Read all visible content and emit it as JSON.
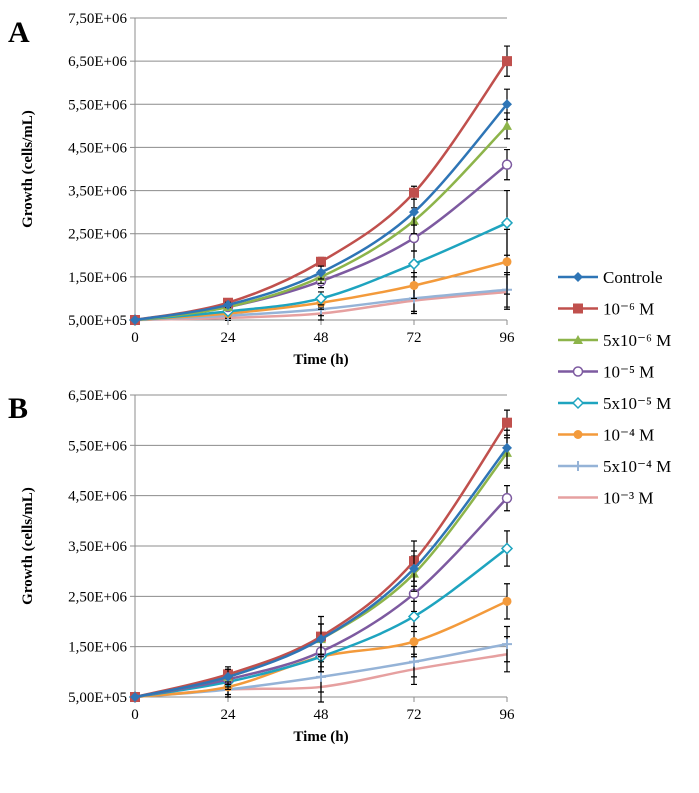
{
  "legend": [
    {
      "label": "Controle",
      "color": "#2e75b6",
      "marker": "diamond"
    },
    {
      "label": "10⁻⁶ M",
      "color": "#c0504d",
      "marker": "square"
    },
    {
      "label": "5x10⁻⁶ M",
      "color": "#8db44a",
      "marker": "triangle"
    },
    {
      "label": "10⁻⁵ M",
      "color": "#7d5aa0",
      "marker": "circle-open"
    },
    {
      "label": "5x10⁻⁵ M",
      "color": "#1ea4bf",
      "marker": "diamond-open"
    },
    {
      "label": "10⁻⁴ M",
      "color": "#f39a3b",
      "marker": "circle"
    },
    {
      "label": "5x10⁻⁴ M",
      "color": "#95b3d7",
      "marker": "plus"
    },
    {
      "label": "10⁻³ M",
      "color": "#e6a0a0",
      "marker": "none"
    }
  ],
  "chart_data": [
    {
      "type": "line",
      "panel": "A",
      "xlabel": "Time (h)",
      "ylabel": "Growth (cells/mL)",
      "x": [
        0,
        24,
        48,
        72,
        96
      ],
      "xlim": [
        0,
        96
      ],
      "ylim": [
        500000,
        7500000
      ],
      "yticks": [
        "5,00E+05",
        "1,50E+06",
        "2,50E+06",
        "3,50E+06",
        "4,50E+06",
        "5,50E+06",
        "6,50E+06",
        "7,50E+06"
      ],
      "xticks": [
        "0",
        "24",
        "48",
        "72",
        "96"
      ],
      "series": [
        {
          "name": "Controle",
          "values": [
            500000,
            850000,
            1600000,
            3000000,
            5500000
          ],
          "err": [
            0,
            60000,
            150000,
            300000,
            350000
          ]
        },
        {
          "name": "10⁻⁶ M",
          "values": [
            500000,
            900000,
            1850000,
            3450000,
            6500000
          ],
          "err": [
            0,
            60000,
            100000,
            150000,
            350000
          ]
        },
        {
          "name": "5x10⁻⁶ M",
          "values": [
            500000,
            800000,
            1500000,
            2800000,
            5000000
          ],
          "err": [
            0,
            60000,
            150000,
            300000,
            300000
          ]
        },
        {
          "name": "10⁻⁵ M",
          "values": [
            500000,
            800000,
            1400000,
            2400000,
            4100000
          ],
          "err": [
            0,
            60000,
            150000,
            300000,
            350000
          ]
        },
        {
          "name": "5x10⁻⁵ M",
          "values": [
            500000,
            700000,
            1000000,
            1800000,
            2750000
          ],
          "err": [
            0,
            60000,
            150000,
            300000,
            750000
          ]
        },
        {
          "name": "10⁻⁴ M",
          "values": [
            500000,
            650000,
            900000,
            1300000,
            1850000
          ],
          "err": [
            0,
            60000,
            150000,
            300000,
            750000
          ]
        },
        {
          "name": "5x10⁻⁴ M",
          "values": [
            500000,
            600000,
            750000,
            1000000,
            1200000
          ],
          "err": [
            0,
            60000,
            150000,
            300000,
            400000
          ]
        },
        {
          "name": "10⁻³ M",
          "values": [
            500000,
            550000,
            650000,
            950000,
            1150000
          ],
          "err": [
            0,
            60000,
            150000,
            300000,
            400000
          ]
        }
      ]
    },
    {
      "type": "line",
      "panel": "B",
      "xlabel": "Time (h)",
      "ylabel": "Growth (cells/mL)",
      "x": [
        0,
        24,
        48,
        72,
        96
      ],
      "xlim": [
        0,
        96
      ],
      "ylim": [
        500000,
        6500000
      ],
      "yticks": [
        "5,00E+05",
        "1,50E+06",
        "2,50E+06",
        "3,50E+06",
        "4,50E+06",
        "5,50E+06",
        "6,50E+06"
      ],
      "xticks": [
        "0",
        "24",
        "48",
        "72",
        "96"
      ],
      "series": [
        {
          "name": "Controle",
          "values": [
            500000,
            900000,
            1650000,
            3050000,
            5450000
          ],
          "err": [
            0,
            150000,
            300000,
            350000,
            350000
          ]
        },
        {
          "name": "10⁻⁶ M",
          "values": [
            500000,
            950000,
            1700000,
            3200000,
            5950000
          ],
          "err": [
            0,
            150000,
            400000,
            400000,
            250000
          ]
        },
        {
          "name": "5x10⁻⁶ M",
          "values": [
            500000,
            900000,
            1650000,
            2950000,
            5350000
          ],
          "err": [
            0,
            150000,
            300000,
            350000,
            300000
          ]
        },
        {
          "name": "10⁻⁵ M",
          "values": [
            500000,
            850000,
            1400000,
            2550000,
            4450000
          ],
          "err": [
            0,
            150000,
            300000,
            350000,
            250000
          ]
        },
        {
          "name": "5x10⁻⁵ M",
          "values": [
            500000,
            800000,
            1300000,
            2100000,
            3450000
          ],
          "err": [
            0,
            150000,
            300000,
            300000,
            350000
          ]
        },
        {
          "name": "10⁻⁴ M",
          "values": [
            500000,
            700000,
            1300000,
            1600000,
            2400000
          ],
          "err": [
            0,
            150000,
            300000,
            300000,
            350000
          ]
        },
        {
          "name": "5x10⁻⁴ M",
          "values": [
            500000,
            650000,
            900000,
            1200000,
            1550000
          ],
          "err": [
            0,
            150000,
            300000,
            300000,
            350000
          ]
        },
        {
          "name": "10⁻³ M",
          "values": [
            500000,
            650000,
            700000,
            1050000,
            1350000
          ],
          "err": [
            0,
            150000,
            300000,
            300000,
            350000
          ]
        }
      ]
    }
  ]
}
